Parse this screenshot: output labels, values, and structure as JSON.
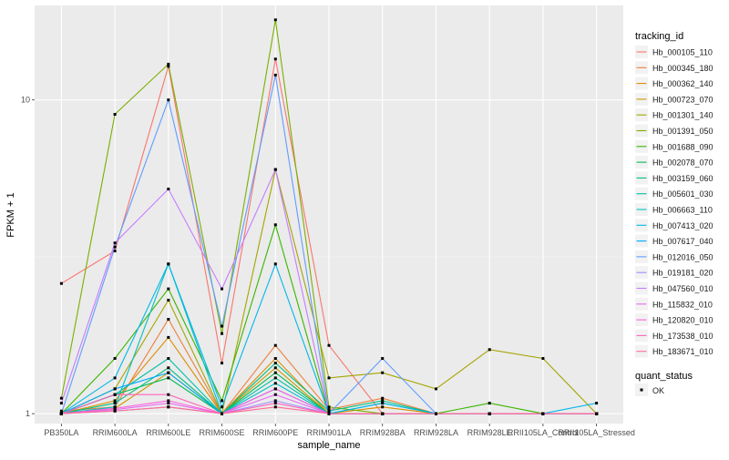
{
  "chart_data": {
    "type": "line",
    "xlabel": "sample_name",
    "ylabel": "FPKM + 1",
    "y_scale": "log10",
    "ylim": [
      0.93,
      20
    ],
    "y_ticks": [
      1,
      10
    ],
    "categories": [
      "PB350LA",
      "RRIM600LA",
      "RRIM600LE",
      "RRIM600SE",
      "RRIM600PE",
      "RRIM901LA",
      "RRIM928BA",
      "RRIM928LA",
      "RRIM928LE",
      "RRII105LA_Control",
      "RRII105LA_Stressed"
    ],
    "legend_title": "tracking_id",
    "legend2_title": "quant_status",
    "legend2_label": "OK",
    "series": [
      {
        "name": "Hb_000105_110",
        "color": "#F8766D",
        "values": [
          2.6,
          3.3,
          12.8,
          1.45,
          13.5,
          1.65,
          1.0,
          1.0,
          1.0,
          1.0,
          1.0
        ]
      },
      {
        "name": "Hb_000345_180",
        "color": "#EE7F3A",
        "values": [
          1.02,
          1.05,
          2.0,
          1.0,
          1.65,
          1.03,
          1.12,
          1.0,
          1.0,
          1.0,
          1.0
        ]
      },
      {
        "name": "Hb_000362_140",
        "color": "#DE8C00",
        "values": [
          1.0,
          1.1,
          1.75,
          1.0,
          1.5,
          1.0,
          1.05,
          1.0,
          1.0,
          1.0,
          1.0
        ]
      },
      {
        "name": "Hb_000723_070",
        "color": "#C99800",
        "values": [
          1.0,
          1.04,
          1.35,
          1.0,
          1.4,
          1.0,
          1.0,
          1.0,
          1.0,
          1.0,
          1.0
        ]
      },
      {
        "name": "Hb_001301_140",
        "color": "#A3A500",
        "values": [
          1.0,
          1.2,
          2.3,
          1.0,
          6.0,
          1.3,
          1.35,
          1.2,
          1.6,
          1.5,
          1.0
        ]
      },
      {
        "name": "Hb_001391_050",
        "color": "#7CAE00",
        "values": [
          1.12,
          9.0,
          13.0,
          1.8,
          18.0,
          1.05,
          1.0,
          1.0,
          1.0,
          1.0,
          1.0
        ]
      },
      {
        "name": "Hb_001688_090",
        "color": "#39B600",
        "values": [
          1.0,
          1.5,
          2.5,
          1.1,
          4.0,
          1.0,
          1.0,
          1.0,
          1.08,
          1.0,
          1.0
        ]
      },
      {
        "name": "Hb_002078_070",
        "color": "#00BB4E",
        "values": [
          1.0,
          1.15,
          1.3,
          1.0,
          1.35,
          1.0,
          1.0,
          1.0,
          1.0,
          1.0,
          1.0
        ]
      },
      {
        "name": "Hb_003159_060",
        "color": "#00BF7D",
        "values": [
          1.0,
          1.08,
          1.4,
          1.0,
          1.45,
          1.02,
          1.1,
          1.0,
          1.0,
          1.0,
          1.0
        ]
      },
      {
        "name": "Hb_005601_030",
        "color": "#00C1A3",
        "values": [
          1.0,
          1.15,
          1.5,
          1.0,
          1.3,
          1.0,
          1.0,
          1.0,
          1.0,
          1.0,
          1.0
        ]
      },
      {
        "name": "Hb_006663_110",
        "color": "#00BFC4",
        "values": [
          1.0,
          1.05,
          3.0,
          1.0,
          1.25,
          1.0,
          1.08,
          1.0,
          1.0,
          1.0,
          1.0
        ]
      },
      {
        "name": "Hb_007413_020",
        "color": "#00B8E7",
        "values": [
          1.0,
          1.3,
          3.0,
          1.05,
          3.0,
          1.0,
          1.08,
          1.0,
          1.0,
          1.0,
          1.08
        ]
      },
      {
        "name": "Hb_007617_040",
        "color": "#00A9FF",
        "values": [
          1.0,
          1.2,
          1.35,
          1.0,
          1.2,
          1.0,
          1.0,
          1.0,
          1.0,
          1.0,
          1.0
        ]
      },
      {
        "name": "Hb_012016_050",
        "color": "#619CFF",
        "values": [
          1.0,
          3.4,
          10.0,
          1.9,
          12.0,
          1.0,
          1.5,
          1.0,
          1.0,
          1.0,
          1.0
        ]
      },
      {
        "name": "Hb_019181_020",
        "color": "#9590FF",
        "values": [
          1.0,
          1.02,
          1.05,
          1.0,
          1.1,
          1.0,
          1.0,
          1.0,
          1.0,
          1.0,
          1.0
        ]
      },
      {
        "name": "Hb_047560_010",
        "color": "#C77CFF",
        "values": [
          1.08,
          3.5,
          5.2,
          2.5,
          6.0,
          1.0,
          1.0,
          1.0,
          1.0,
          1.0,
          1.0
        ]
      },
      {
        "name": "Hb_115832_010",
        "color": "#E76BF3",
        "values": [
          1.0,
          1.03,
          1.08,
          1.0,
          1.15,
          1.0,
          1.0,
          1.0,
          1.0,
          1.0,
          1.0
        ]
      },
      {
        "name": "Hb_120820_010",
        "color": "#FA62DB",
        "values": [
          1.0,
          1.04,
          1.1,
          1.0,
          1.2,
          1.0,
          1.0,
          1.0,
          1.0,
          1.0,
          1.0
        ]
      },
      {
        "name": "Hb_173538_010",
        "color": "#FF62BC",
        "values": [
          1.0,
          1.15,
          1.15,
          1.0,
          1.08,
          1.0,
          1.0,
          1.0,
          1.0,
          1.0,
          1.0
        ]
      },
      {
        "name": "Hb_183671_010",
        "color": "#FF6C91",
        "values": [
          1.0,
          1.02,
          1.05,
          1.0,
          1.05,
          1.0,
          1.0,
          1.0,
          1.0,
          1.0,
          1.0
        ]
      }
    ]
  }
}
